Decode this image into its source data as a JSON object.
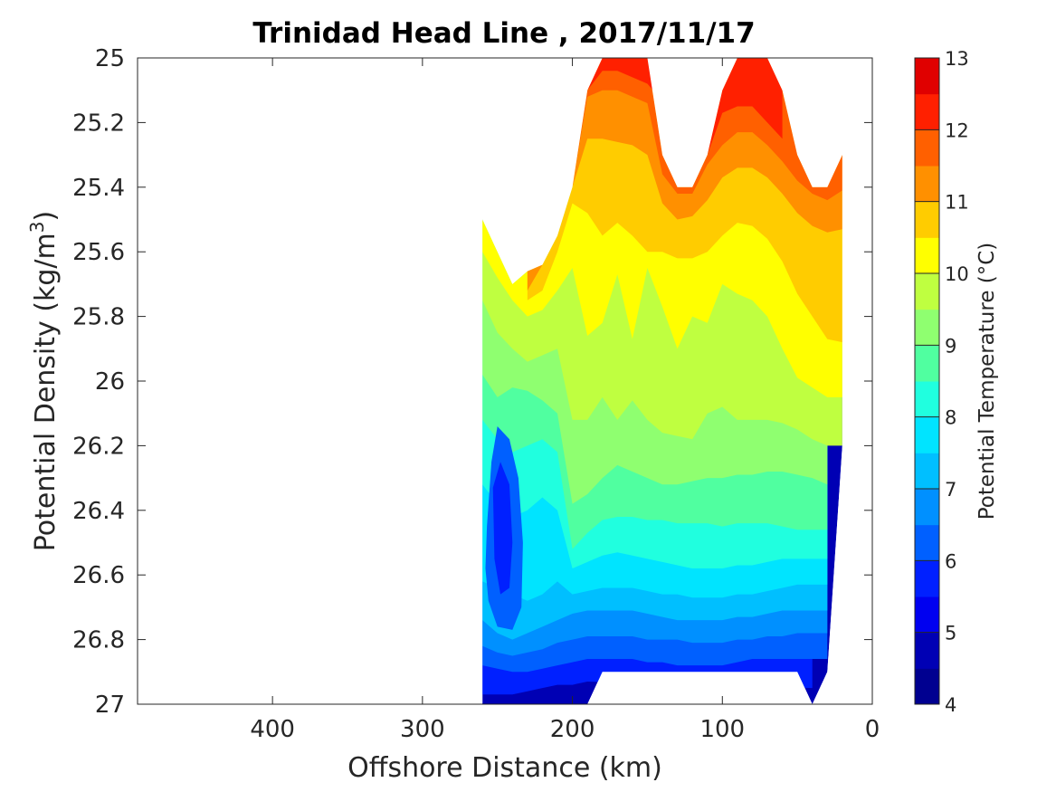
{
  "chart_data": {
    "type": "heatmap",
    "title": "Trinidad Head Line , 2017/11/17",
    "xlabel": "Offshore Distance (km)",
    "ylabel_prefix": "Potential Density (kg/m",
    "ylabel_sup": "3",
    "ylabel_suffix": ")",
    "xlim": [
      490,
      0
    ],
    "x_reversed": true,
    "ylim": [
      25,
      27
    ],
    "y_reversed": true,
    "xticks": [
      400,
      300,
      200,
      100,
      0
    ],
    "xtick_labels": [
      "400",
      "300",
      "200",
      "100",
      "0"
    ],
    "yticks": [
      25,
      25.2,
      25.4,
      25.6,
      25.8,
      26,
      26.2,
      26.4,
      26.6,
      26.8,
      27
    ],
    "ytick_labels": [
      "25",
      "25.2",
      "25.4",
      "25.6",
      "25.8",
      "26",
      "26.2",
      "26.4",
      "26.6",
      "26.8",
      "27"
    ],
    "colorbar": {
      "label": "Potential Temperature (°C)",
      "range": [
        4,
        13
      ],
      "step": 0.5,
      "ticks": [
        4,
        5,
        6,
        7,
        8,
        9,
        10,
        11,
        12,
        13
      ],
      "tick_labels": [
        "4",
        "5",
        "6",
        "7",
        "8",
        "9",
        "10",
        "11",
        "12",
        "13"
      ],
      "colors": [
        "#000090",
        "#0000b4",
        "#0000f0",
        "#0020ff",
        "#0060ff",
        "#0090ff",
        "#00bfff",
        "#00e4ff",
        "#20ffdf",
        "#50ffa0",
        "#8fff70",
        "#bfff40",
        "#ffff00",
        "#ffcc00",
        "#ff9000",
        "#ff6000",
        "#ff2000",
        "#e00000"
      ]
    },
    "x_columns": [
      260,
      250,
      240,
      230,
      220,
      210,
      200,
      190,
      180,
      170,
      160,
      150,
      140,
      130,
      120,
      110,
      100,
      90,
      80,
      70,
      60,
      50,
      40,
      30,
      20
    ],
    "surface_density": [
      25.5,
      25.6,
      25.7,
      25.66,
      25.64,
      25.55,
      25.4,
      25.1,
      25.0,
      25.0,
      25.0,
      25.0,
      25.3,
      25.4,
      25.4,
      25.3,
      25.1,
      25.0,
      25.0,
      25.0,
      25.1,
      25.3,
      25.4,
      25.4,
      25.3
    ],
    "bottom_density": [
      27,
      27,
      27,
      27,
      27,
      27,
      27,
      27,
      26.9,
      26.9,
      26.9,
      26.9,
      26.9,
      26.9,
      26.9,
      26.9,
      26.9,
      26.9,
      26.9,
      26.9,
      26.9,
      26.9,
      27,
      26.9,
      26.2
    ],
    "isotherms": [
      {
        "t": 12.5,
        "y": [
          null,
          null,
          null,
          null,
          null,
          25.08,
          25.0,
          25.0,
          25.0,
          25.0,
          25.0,
          25.0,
          null,
          null,
          null,
          null,
          25.0,
          25.0,
          25.0,
          25.0,
          null,
          null,
          null,
          null,
          null
        ]
      },
      {
        "t": 12,
        "y": [
          null,
          null,
          null,
          null,
          null,
          25.1,
          25.05,
          25.0,
          25.0,
          25.0,
          25.0,
          25.0,
          null,
          null,
          null,
          null,
          25.06,
          25.0,
          25.0,
          25.0,
          25.1,
          null,
          null,
          null,
          null
        ]
      },
      {
        "t": 11.5,
        "y": [
          null,
          null,
          null,
          null,
          null,
          25.2,
          25.1,
          25.06,
          25.04,
          25.04,
          25.06,
          25.08,
          null,
          null,
          null,
          25.3,
          25.17,
          25.15,
          25.15,
          25.2,
          25.25,
          null,
          null,
          null,
          null
        ]
      },
      {
        "t": 11,
        "y": [
          null,
          null,
          null,
          null,
          25.44,
          25.3,
          25.2,
          25.12,
          25.1,
          25.1,
          25.12,
          25.14,
          25.36,
          25.42,
          25.42,
          25.33,
          25.27,
          25.23,
          25.23,
          25.27,
          25.32,
          25.38,
          25.42,
          25.44,
          25.41
        ]
      },
      {
        "t": 10.5,
        "y": [
          null,
          null,
          null,
          25.72,
          25.62,
          25.45,
          25.3,
          25.25,
          25.25,
          25.26,
          25.27,
          25.3,
          25.45,
          25.5,
          25.49,
          25.44,
          25.37,
          25.34,
          25.34,
          25.37,
          25.42,
          25.48,
          25.52,
          25.54,
          25.53
        ]
      },
      {
        "t": 10,
        "y": [
          null,
          null,
          null,
          25.75,
          25.72,
          25.6,
          25.45,
          25.48,
          25.55,
          25.51,
          25.55,
          25.6,
          25.6,
          25.62,
          25.62,
          25.6,
          25.55,
          25.51,
          25.52,
          25.56,
          25.63,
          25.73,
          25.8,
          25.87,
          25.88
        ]
      },
      {
        "t": 9.5,
        "y": [
          25.6,
          25.68,
          25.75,
          25.8,
          25.78,
          25.72,
          25.65,
          25.86,
          25.82,
          25.67,
          25.87,
          25.65,
          25.77,
          25.9,
          25.8,
          25.82,
          25.7,
          25.73,
          25.75,
          25.8,
          25.9,
          25.99,
          26.02,
          26.05,
          26.05
        ]
      },
      {
        "t": 9,
        "y": [
          25.75,
          25.85,
          25.9,
          25.94,
          25.92,
          25.9,
          26.12,
          26.12,
          26.05,
          26.12,
          26.06,
          26.12,
          26.16,
          26.17,
          26.18,
          26.1,
          26.08,
          26.12,
          26.12,
          26.12,
          26.13,
          26.15,
          26.18,
          26.2,
          26.2
        ]
      },
      {
        "t": 8.5,
        "y": [
          25.98,
          26.05,
          26.02,
          26.03,
          26.06,
          26.1,
          26.38,
          26.35,
          26.3,
          26.26,
          26.28,
          26.3,
          26.32,
          26.32,
          26.31,
          26.3,
          26.3,
          26.29,
          26.29,
          26.28,
          26.28,
          26.29,
          26.3,
          26.32,
          null
        ]
      },
      {
        "t": 8,
        "y": [
          26.12,
          26.18,
          26.22,
          26.2,
          26.18,
          26.22,
          26.52,
          26.47,
          26.43,
          26.42,
          26.42,
          26.43,
          26.43,
          26.44,
          26.44,
          26.44,
          26.45,
          26.44,
          26.44,
          26.44,
          26.45,
          26.46,
          26.46,
          26.46,
          null
        ]
      },
      {
        "t": 7.5,
        "y": [
          26.32,
          26.38,
          26.42,
          26.4,
          26.36,
          26.4,
          26.58,
          26.56,
          26.54,
          26.53,
          26.54,
          26.55,
          26.56,
          26.57,
          26.58,
          26.58,
          26.58,
          26.57,
          26.57,
          26.56,
          26.55,
          26.55,
          26.55,
          26.55,
          null
        ]
      },
      {
        "t": 7,
        "y": [
          26.62,
          26.64,
          26.66,
          26.68,
          26.66,
          26.62,
          26.66,
          26.65,
          26.64,
          26.64,
          26.64,
          26.65,
          26.66,
          26.66,
          26.67,
          26.67,
          26.67,
          26.66,
          26.66,
          26.65,
          26.64,
          26.63,
          26.63,
          26.63,
          null
        ]
      },
      {
        "t": 6.5,
        "y": [
          26.74,
          26.78,
          26.8,
          26.78,
          26.76,
          26.74,
          26.72,
          26.71,
          26.71,
          26.71,
          26.71,
          26.72,
          26.73,
          26.74,
          26.74,
          26.74,
          26.74,
          26.73,
          26.73,
          26.72,
          26.71,
          26.71,
          26.71,
          26.71,
          null
        ]
      },
      {
        "t": 6,
        "y": [
          26.82,
          26.84,
          26.85,
          26.84,
          26.83,
          26.81,
          26.8,
          26.79,
          26.79,
          26.79,
          26.79,
          26.8,
          26.8,
          26.8,
          26.81,
          26.81,
          26.81,
          26.8,
          26.8,
          26.79,
          26.79,
          26.78,
          26.78,
          26.78,
          null
        ]
      },
      {
        "t": 5.5,
        "y": [
          26.88,
          26.89,
          26.9,
          26.9,
          26.89,
          26.88,
          26.87,
          26.86,
          26.86,
          26.86,
          26.86,
          26.87,
          26.87,
          26.88,
          26.88,
          26.88,
          26.88,
          26.87,
          26.86,
          26.86,
          26.86,
          26.86,
          26.86,
          26.86,
          null
        ]
      },
      {
        "t": 5,
        "y": [
          26.97,
          26.97,
          26.97,
          26.96,
          26.95,
          26.94,
          26.94,
          26.93,
          null,
          null,
          null,
          null,
          null,
          null,
          null,
          null,
          null,
          null,
          null,
          null,
          null,
          null,
          26.95,
          null,
          null
        ]
      }
    ],
    "cold_core": [
      {
        "t": 6.5,
        "points": [
          [
            257,
            26.45
          ],
          [
            254,
            26.25
          ],
          [
            250,
            26.14
          ],
          [
            242,
            26.18
          ],
          [
            236,
            26.3
          ],
          [
            233,
            26.5
          ],
          [
            234,
            26.7
          ],
          [
            240,
            26.77
          ],
          [
            250,
            26.76
          ],
          [
            256,
            26.68
          ],
          [
            258,
            26.58
          ]
        ]
      },
      {
        "t": 6,
        "points": [
          [
            253,
            26.33
          ],
          [
            248,
            26.25
          ],
          [
            242,
            26.32
          ],
          [
            240,
            26.5
          ],
          [
            242,
            26.64
          ],
          [
            248,
            26.66
          ],
          [
            252,
            26.55
          ]
        ]
      }
    ]
  }
}
